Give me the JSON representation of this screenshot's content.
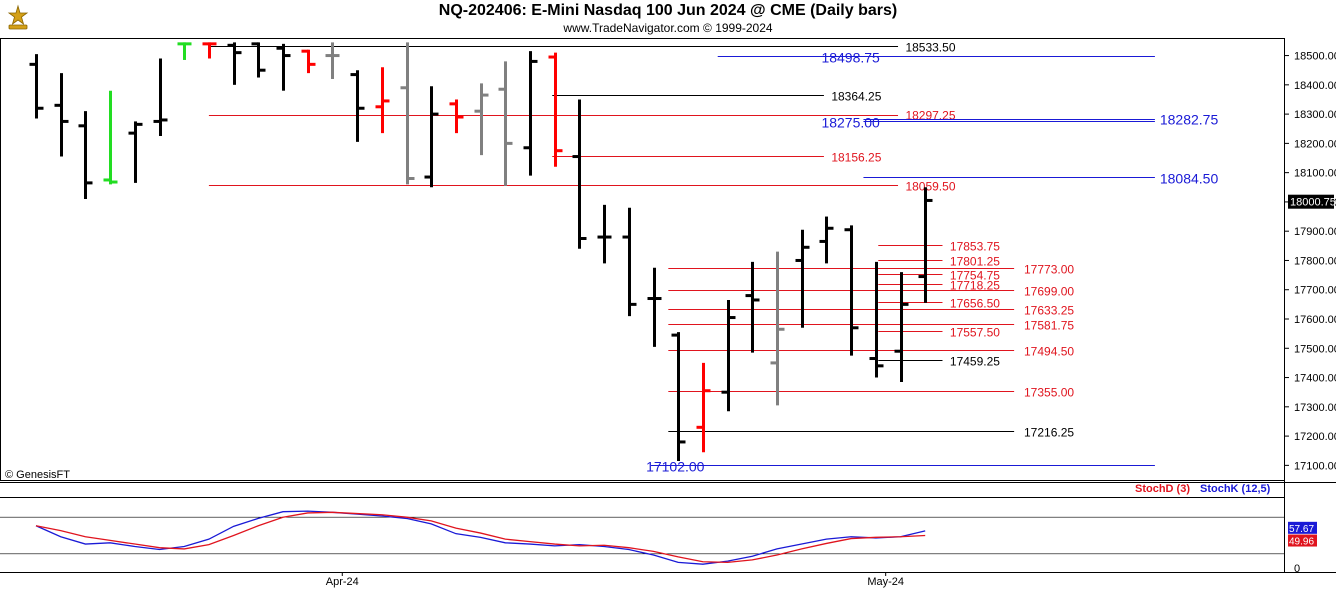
{
  "header": {
    "title": "NQ-202406:  E-Mini Nasdaq 100 Jun 2024 @ CME  (Daily bars)",
    "subtitle": "www.TradeNavigator.com © 1999-2024",
    "credit": "© GenesisFT"
  },
  "colors": {
    "bar_black": "#000000",
    "bar_grey": "#808080",
    "bar_red": "#ff0000",
    "bar_green": "#22dd22",
    "level_red": "#e0141e",
    "level_blue": "#1a1ad6",
    "level_black": "#000000",
    "stoch_k": "#1a1ad6",
    "stoch_d": "#e0141e"
  },
  "chart_data": [
    {
      "type": "ohlc",
      "ylim": [
        17050,
        18560
      ],
      "yticks": [
        17100,
        17200,
        17300,
        17400,
        17500,
        17600,
        17700,
        17800,
        17900,
        18000,
        18100,
        18200,
        18300,
        18400,
        18500
      ],
      "ytick_labels": [
        "17100.00",
        "17200.00",
        "17300.00",
        "17400.00",
        "17500.00",
        "17600.00",
        "17700.00",
        "17800.00",
        "17900.00",
        "18000.00",
        "18100.00",
        "18200.00",
        "18300.00",
        "18400.00",
        "18500.00"
      ],
      "x_labels": [
        {
          "label": "Apr-24",
          "bar": 12.4
        },
        {
          "label": "May-24",
          "bar": 34.4
        }
      ],
      "last_price": {
        "value": 18000.75,
        "label": "18000.75"
      },
      "bars": [
        {
          "o": 18470,
          "h": 18505,
          "l": 18285,
          "c": 18320,
          "color": "black"
        },
        {
          "o": 18330,
          "h": 18440,
          "l": 18155,
          "c": 18275,
          "color": "black"
        },
        {
          "o": 18260,
          "h": 18310,
          "l": 18010,
          "c": 18065,
          "color": "black"
        },
        {
          "o": 18075,
          "h": 18380,
          "l": 18060,
          "c": 18068,
          "color": "green"
        },
        {
          "o": 18235,
          "h": 18275,
          "l": 18065,
          "c": 18265,
          "color": "black"
        },
        {
          "o": 18275,
          "h": 18490,
          "l": 18225,
          "c": 18280,
          "color": "black"
        },
        {
          "o": 18540,
          "h": 18545,
          "l": 18485,
          "c": 18540,
          "color": "green"
        },
        {
          "o": 18540,
          "h": 18545,
          "l": 18490,
          "c": 18540,
          "color": "red"
        },
        {
          "o": 18535,
          "h": 18545,
          "l": 18400,
          "c": 18510,
          "color": "black"
        },
        {
          "o": 18540,
          "h": 18545,
          "l": 18425,
          "c": 18450,
          "color": "black"
        },
        {
          "o": 18525,
          "h": 18540,
          "l": 18380,
          "c": 18500,
          "color": "black"
        },
        {
          "o": 18515,
          "h": 18520,
          "l": 18440,
          "c": 18470,
          "color": "red"
        },
        {
          "o": 18500,
          "h": 18545,
          "l": 18420,
          "c": 18500,
          "color": "grey"
        },
        {
          "o": 18435,
          "h": 18450,
          "l": 18205,
          "c": 18320,
          "color": "black"
        },
        {
          "o": 18325,
          "h": 18460,
          "l": 18235,
          "c": 18345,
          "color": "red"
        },
        {
          "o": 18390,
          "h": 18545,
          "l": 18060,
          "c": 18080,
          "color": "grey"
        },
        {
          "o": 18085,
          "h": 18395,
          "l": 18050,
          "c": 18300,
          "color": "black"
        },
        {
          "o": 18335,
          "h": 18350,
          "l": 18235,
          "c": 18290,
          "color": "red"
        },
        {
          "o": 18310,
          "h": 18405,
          "l": 18160,
          "c": 18365,
          "color": "grey"
        },
        {
          "o": 18385,
          "h": 18480,
          "l": 18055,
          "c": 18200,
          "color": "grey"
        },
        {
          "o": 18185,
          "h": 18515,
          "l": 18090,
          "c": 18480,
          "color": "black"
        },
        {
          "o": 18495,
          "h": 18510,
          "l": 18120,
          "c": 18175,
          "color": "red"
        },
        {
          "o": 18155,
          "h": 18350,
          "l": 17840,
          "c": 17875,
          "color": "black"
        },
        {
          "o": 17880,
          "h": 17990,
          "l": 17790,
          "c": 17880,
          "color": "black"
        },
        {
          "o": 17880,
          "h": 17980,
          "l": 17610,
          "c": 17650,
          "color": "black"
        },
        {
          "o": 17670,
          "h": 17775,
          "l": 17505,
          "c": 17670,
          "color": "black"
        },
        {
          "o": 17545,
          "h": 17555,
          "l": 17115,
          "c": 17180,
          "color": "black"
        },
        {
          "o": 17230,
          "h": 17450,
          "l": 17145,
          "c": 17355,
          "color": "red"
        },
        {
          "o": 17350,
          "h": 17665,
          "l": 17285,
          "c": 17605,
          "color": "black"
        },
        {
          "o": 17680,
          "h": 17795,
          "l": 17485,
          "c": 17665,
          "color": "black"
        },
        {
          "o": 17450,
          "h": 17830,
          "l": 17305,
          "c": 17565,
          "color": "grey"
        },
        {
          "o": 17800,
          "h": 17905,
          "l": 17570,
          "c": 17845,
          "color": "black"
        },
        {
          "o": 17865,
          "h": 17950,
          "l": 17790,
          "c": 17910,
          "color": "black"
        },
        {
          "o": 17905,
          "h": 17920,
          "l": 17475,
          "c": 17570,
          "color": "black"
        },
        {
          "o": 17465,
          "h": 17795,
          "l": 17400,
          "c": 17440,
          "color": "black"
        },
        {
          "o": 17490,
          "h": 17760,
          "l": 17385,
          "c": 17650,
          "color": "black"
        },
        {
          "o": 17745,
          "h": 18050,
          "l": 17655,
          "c": 18005,
          "color": "black"
        }
      ],
      "levels": [
        {
          "value": 18533.5,
          "label": "18533.50",
          "color": "black",
          "x0_bar": 7,
          "end_bar": 34.9,
          "label_bar": 35.2,
          "label_dy": 1,
          "label_size": 12
        },
        {
          "value": 18498.75,
          "label": "18498.75",
          "color": "blue",
          "x0_bar": 27.6,
          "end_bar": 45.3,
          "label_bar": 31.8,
          "label_dy": 1,
          "label_size": 14
        },
        {
          "value": 18364.25,
          "label": "18364.25",
          "color": "black",
          "x0_bar": 20.9,
          "end_bar": 31.9,
          "label_bar": 32.2,
          "label_dy": 1,
          "label_size": 12
        },
        {
          "value": 18297.25,
          "label": "18297.25",
          "color": "red",
          "x0_bar": 7,
          "end_bar": 34.9,
          "label_bar": 35.2,
          "label_dy": 0,
          "label_size": 12
        },
        {
          "value": 18282.75,
          "label": "18282.75",
          "color": "blue",
          "x0_bar": 33.5,
          "end_bar": 45.3,
          "label_bar": 45.5,
          "label_dy": 0,
          "label_size": 14
        },
        {
          "value": 18275.0,
          "label": "18275.00",
          "color": "blue",
          "x0_bar": 33.5,
          "end_bar": 45.3,
          "label_bar": 31.8,
          "label_dy": 1,
          "label_size": 14
        },
        {
          "value": 18156.25,
          "label": "18156.25",
          "color": "red",
          "x0_bar": 20.9,
          "end_bar": 31.9,
          "label_bar": 32.2,
          "label_dy": 1,
          "label_size": 12
        },
        {
          "value": 18084.5,
          "label": "18084.50",
          "color": "blue",
          "x0_bar": 33.5,
          "end_bar": 45.3,
          "label_bar": 45.5,
          "label_dy": 1,
          "label_size": 14
        },
        {
          "value": 18059.5,
          "label": "18059.50",
          "color": "red",
          "x0_bar": 7,
          "end_bar": 34.9,
          "label_bar": 35.2,
          "label_dy": 1,
          "label_size": 12
        },
        {
          "value": 17853.75,
          "label": "17853.75",
          "color": "red",
          "x0_bar": 34.1,
          "end_bar": 36.7,
          "label_bar": 37.0,
          "label_dy": 1,
          "label_size": 12
        },
        {
          "value": 17801.25,
          "label": "17801.25",
          "color": "red",
          "x0_bar": 34.1,
          "end_bar": 36.7,
          "label_bar": 37.0,
          "label_dy": 1,
          "label_size": 12
        },
        {
          "value": 17773.0,
          "label": "17773.00",
          "color": "red",
          "x0_bar": 25.6,
          "end_bar": 39.6,
          "label_bar": 40.0,
          "label_dy": 1,
          "label_size": 12
        },
        {
          "value": 17754.75,
          "label": "17754.75",
          "color": "red",
          "x0_bar": 34.1,
          "end_bar": 36.7,
          "label_bar": 37.0,
          "label_dy": 1,
          "label_size": 12
        },
        {
          "value": 17718.25,
          "label": "17718.25",
          "color": "red",
          "x0_bar": 34.1,
          "end_bar": 36.7,
          "label_bar": 37.0,
          "label_dy": 1,
          "label_size": 12
        },
        {
          "value": 17699.0,
          "label": "17699.00",
          "color": "red",
          "x0_bar": 25.6,
          "end_bar": 39.6,
          "label_bar": 40.0,
          "label_dy": 1,
          "label_size": 12
        },
        {
          "value": 17656.5,
          "label": "17656.50",
          "color": "red",
          "x0_bar": 34.1,
          "end_bar": 36.7,
          "label_bar": 37.0,
          "label_dy": 1,
          "label_size": 12
        },
        {
          "value": 17633.25,
          "label": "17633.25",
          "color": "red",
          "x0_bar": 25.6,
          "end_bar": 39.6,
          "label_bar": 40.0,
          "label_dy": 1,
          "label_size": 12
        },
        {
          "value": 17581.75,
          "label": "17581.75",
          "color": "red",
          "x0_bar": 25.6,
          "end_bar": 39.6,
          "label_bar": 40.0,
          "label_dy": 1,
          "label_size": 12
        },
        {
          "value": 17557.5,
          "label": "17557.50",
          "color": "red",
          "x0_bar": 34.1,
          "end_bar": 36.7,
          "label_bar": 37.0,
          "label_dy": 1,
          "label_size": 12
        },
        {
          "value": 17494.5,
          "label": "17494.50",
          "color": "red",
          "x0_bar": 25.6,
          "end_bar": 39.6,
          "label_bar": 40.0,
          "label_dy": 1,
          "label_size": 12
        },
        {
          "value": 17459.25,
          "label": "17459.25",
          "color": "black",
          "x0_bar": 34.1,
          "end_bar": 36.7,
          "label_bar": 37.0,
          "label_dy": 1,
          "label_size": 12
        },
        {
          "value": 17355.0,
          "label": "17355.00",
          "color": "red",
          "x0_bar": 25.6,
          "end_bar": 39.6,
          "label_bar": 40.0,
          "label_dy": 1,
          "label_size": 12
        },
        {
          "value": 17216.25,
          "label": "17216.25",
          "color": "black",
          "x0_bar": 25.6,
          "end_bar": 39.6,
          "label_bar": 40.0,
          "label_dy": 1,
          "label_size": 12
        },
        {
          "value": 17102.0,
          "label": "17102.00",
          "color": "blue",
          "x0_bar": 24.9,
          "end_bar": 45.3,
          "label_bar": 24.7,
          "label_dy": 1,
          "label_size": 14
        }
      ]
    },
    {
      "type": "line",
      "name": "stochastic",
      "ylim": [
        0,
        100
      ],
      "ytick_labels": [
        {
          "value": 0,
          "label": "0"
        }
      ],
      "reference_lines": [
        20,
        80
      ],
      "legend": [
        "StochD (3)",
        "StochK (12,5)"
      ],
      "series": [
        {
          "name": "StochK (12,5)",
          "color_key": "stoch_k",
          "last_label": "57.67",
          "values": [
            66,
            48,
            36,
            38,
            32,
            27,
            32,
            44,
            65,
            78,
            89,
            90,
            88,
            85,
            82,
            78,
            69,
            53,
            47,
            38,
            36,
            33,
            35,
            32,
            27,
            18,
            6,
            3,
            8,
            16,
            28,
            36,
            44,
            48,
            46,
            48,
            57.67
          ]
        },
        {
          "name": "StochD (3)",
          "color_key": "stoch_d",
          "last_label": "49.96",
          "values": [
            66,
            58,
            48,
            42,
            36,
            30,
            28,
            35,
            50,
            66,
            80,
            87,
            88,
            86,
            84,
            80,
            74,
            62,
            54,
            44,
            40,
            36,
            33,
            34,
            30,
            24,
            15,
            7,
            6,
            10,
            18,
            28,
            37,
            45,
            47,
            48,
            49.96
          ]
        }
      ]
    }
  ]
}
